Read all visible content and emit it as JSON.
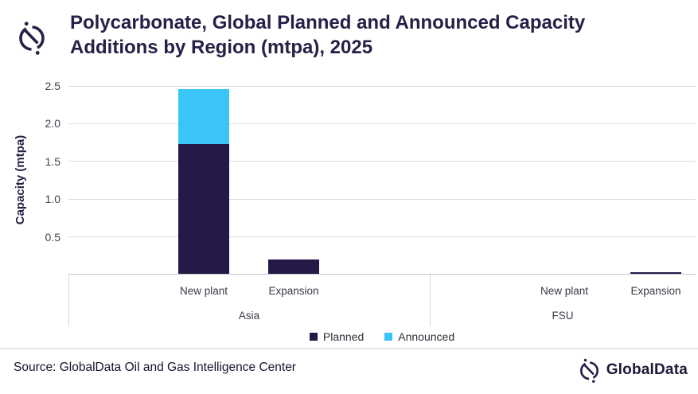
{
  "header": {
    "title_line1": "Polycarbonate, Global Planned and Announced Capacity",
    "title_line2": "Additions by Region (mtpa), 2025",
    "logo_icon": "globaldata-compass-icon"
  },
  "chart_data": {
    "type": "bar",
    "stacked": true,
    "title": "Polycarbonate, Global Planned and Announced Capacity Additions by Region (mtpa), 2025",
    "ylabel": "Capacity (mtpa)",
    "ylim": [
      0,
      2.5
    ],
    "ytick_step": 0.5,
    "grid": "horizontal",
    "legend_position": "bottom",
    "groups": [
      {
        "region": "Asia",
        "categories": [
          "New plant",
          "Expansion"
        ]
      },
      {
        "region": "FSU",
        "categories": [
          "New plant",
          "Expansion"
        ]
      }
    ],
    "slot_order": [
      "Asia / New plant",
      "Asia / Expansion",
      "FSU / New plant",
      "FSU / Expansion"
    ],
    "series": [
      {
        "name": "Planned",
        "color": "#251A47",
        "values": [
          1.73,
          0.2,
          0,
          0.03
        ]
      },
      {
        "name": "Announced",
        "color": "#3AC4F7",
        "values": [
          0.73,
          0,
          0,
          0
        ]
      }
    ]
  },
  "footer": {
    "source": "Source: GlobalData Oil and Gas Intelligence Center",
    "brand": "GlobalData",
    "logo_icon": "globaldata-compass-icon"
  }
}
